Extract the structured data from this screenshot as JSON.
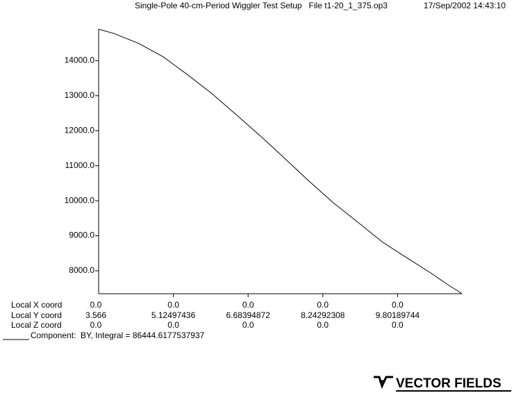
{
  "chart_data": {
    "type": "line",
    "title": "Single-Pole 40-cm-Period Wiggler Test Setup   File t1-20_1_375.op3",
    "timestamp": "17/Sep/2002 14:43:10",
    "x": [
      3.566,
      3.899,
      4.406,
      4.913,
      5.42,
      5.927,
      6.434,
      6.941,
      7.448,
      7.955,
      8.463,
      8.97,
      9.477,
      9.984,
      10.491,
      10.854,
      11.144
    ],
    "series": [
      {
        "name": "Component:  BY, Integral = 86444.6177537937",
        "color": "#000000",
        "values": [
          14900,
          14770,
          14490,
          14110,
          13600,
          13060,
          12460,
          11850,
          11210,
          10560,
          9940,
          9390,
          8830,
          8380,
          7940,
          7600,
          7350
        ]
      }
    ],
    "xlim": [
      3.566,
      11.144
    ],
    "ylim": [
      7345,
      14900
    ],
    "xticks": [
      3.566,
      5.12497436,
      6.68394872,
      8.24292308,
      9.80189744
    ],
    "yticks": [
      {
        "value": 8000,
        "label": "8000.0"
      },
      {
        "value": 9000,
        "label": "9000.0"
      },
      {
        "value": 10000,
        "label": "10000.0"
      },
      {
        "value": 11000,
        "label": "11000.0"
      },
      {
        "value": 12000,
        "label": "12000.0"
      },
      {
        "value": 13000,
        "label": "13000.0"
      },
      {
        "value": 14000,
        "label": "14000.0"
      }
    ],
    "coord_rows": [
      {
        "label": "Local X coord",
        "values": [
          "0.0",
          "0.0",
          "0.0",
          "0.0",
          "0.0"
        ]
      },
      {
        "label": "Local Y coord"
      },
      {
        "label": "Local Z coord",
        "values": [
          "0.0",
          "0.0",
          "0.0",
          "0.0",
          "0.0"
        ]
      }
    ],
    "logo": "VECTOR FIELDS"
  }
}
